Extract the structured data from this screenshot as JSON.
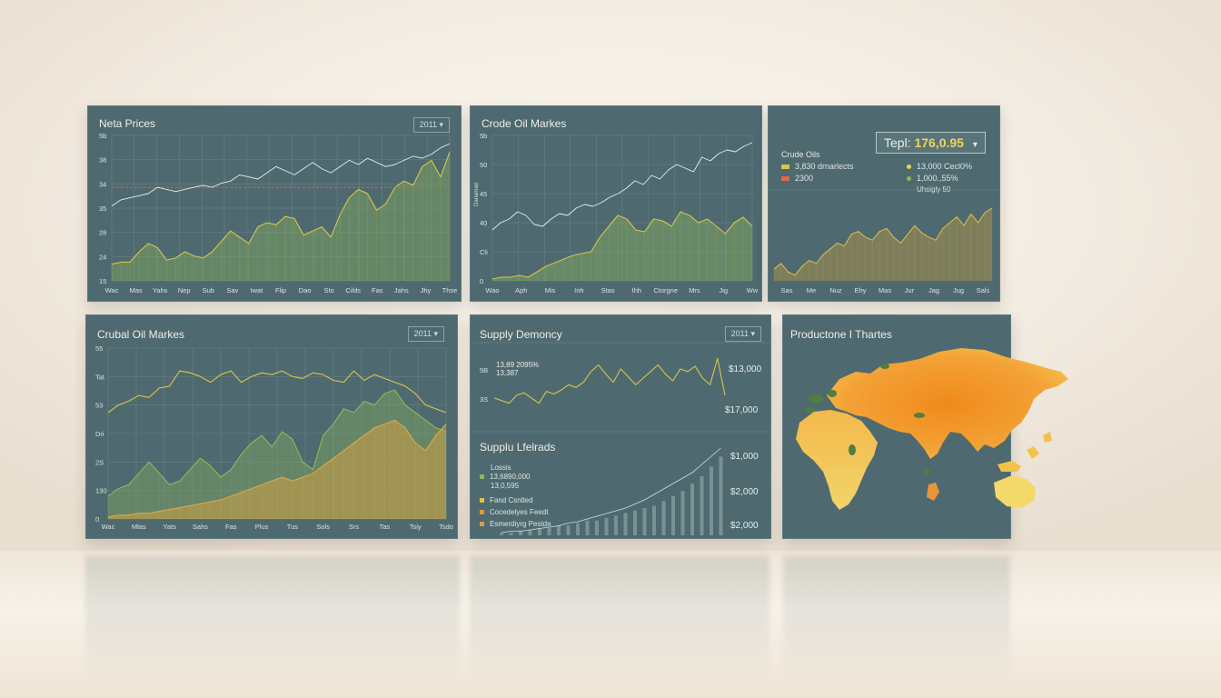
{
  "colors": {
    "panel": "#4e6a70",
    "grid": "#6c8489",
    "yellow": "#d9c44a",
    "green": "#8fb85a",
    "orange": "#e8953a",
    "line_white": "#e8ece9",
    "red_dashed": "#d0674c"
  },
  "panel1": {
    "title": "Neta Prices",
    "badge": "2011 ▾"
  },
  "panel2": {
    "title": "Crode Oil Markes"
  },
  "panel3": {
    "series1": "Crude Oils",
    "selector_label": "Tepl:",
    "selector_value": "176,0.95",
    "legend_left": [
      "3,830 drnarlects",
      "2300"
    ],
    "legend_right": [
      "13,000 Cecl0%",
      "1,000.,55%"
    ],
    "legend_note": "Uhsigly 50"
  },
  "panel4": {
    "title": "Crubal Oil Markes",
    "badge": "2011 ▾"
  },
  "panel5": {
    "title": "Supply Demoncy",
    "badge": "2011 ▾",
    "inline_labels": [
      "13,89 2095%",
      "13,387"
    ],
    "sub_title": "Supplu Lfelrads",
    "legend": [
      "Lossis",
      "13,6890,000",
      "13,0,595",
      "Fand Csnlted",
      "Cocedelyes Feedt",
      "Esmerdiyrg Pestde"
    ]
  },
  "panel6": {
    "title": "Productone I Thartes"
  },
  "chart_data": [
    {
      "type": "line",
      "title": "Neta Prices",
      "x_labels": [
        "Wac",
        "Mas",
        "Yahs",
        "Nep",
        "Sub",
        "Sav",
        "Iwat",
        "Flip",
        "Dao",
        "Sto",
        "Cilds",
        "Fas",
        "Jahs",
        "Jhy",
        "Thse"
      ],
      "y_labels": [
        "5b",
        "38",
        "34",
        "35",
        "28",
        "24",
        "15"
      ],
      "series": [
        {
          "values": [
            36,
            39,
            40,
            41,
            42,
            45,
            44,
            43,
            44,
            45,
            46,
            45,
            47,
            48,
            51,
            50,
            49,
            52,
            55,
            53,
            51,
            54,
            57,
            54,
            52,
            55,
            58,
            56,
            59,
            57,
            55,
            56,
            58,
            60,
            59,
            61,
            64,
            66
          ]
        },
        {
          "values": [
            8,
            9,
            9,
            14,
            18,
            16,
            10,
            11,
            14,
            12,
            11,
            14,
            19,
            24,
            21,
            18,
            26,
            28,
            27,
            31,
            30,
            22,
            24,
            26,
            21,
            32,
            40,
            44,
            42,
            34,
            37,
            45,
            48,
            46,
            55,
            58,
            50,
            62
          ]
        }
      ],
      "reference_line": 45
    },
    {
      "type": "line",
      "title": "Crode Oil Markes",
      "x_labels": [
        "Wao",
        "Aph",
        "Mis",
        "Inh",
        "Stas",
        "Ihh",
        "Ctorgne",
        "Mrs",
        "Jig",
        "Ww"
      ],
      "y_labels": [
        "5b",
        "50",
        "45",
        "40",
        "Cli",
        "0"
      ],
      "series": [
        {
          "values": [
            28,
            32,
            34,
            38,
            36,
            31,
            30,
            34,
            37,
            36,
            40,
            42,
            41,
            43,
            46,
            48,
            51,
            55,
            53,
            58,
            56,
            61,
            64,
            62,
            60,
            68,
            66,
            70,
            72,
            71,
            74,
            76
          ]
        },
        {
          "values": [
            1,
            2,
            2,
            3,
            2,
            5,
            8,
            10,
            12,
            14,
            15,
            16,
            24,
            30,
            36,
            34,
            28,
            27,
            34,
            33,
            30,
            38,
            36,
            32,
            34,
            30,
            26,
            32,
            35,
            30
          ]
        }
      ],
      "y_axis_label": "Dariamad"
    },
    {
      "type": "area",
      "title": "Crude Oils",
      "x_labels": [
        "Sas",
        "Me",
        "Nuz",
        "Ehy",
        "Mas",
        "Jur",
        "Jag",
        "Jug",
        "Sals"
      ],
      "series": [
        {
          "name": "Crude Oils",
          "values": [
            8,
            12,
            6,
            4,
            10,
            14,
            12,
            18,
            22,
            26,
            24,
            32,
            34,
            30,
            28,
            34,
            36,
            30,
            26,
            32,
            38,
            33,
            30,
            28,
            36,
            40,
            44,
            38,
            46,
            40,
            47,
            50
          ]
        }
      ]
    },
    {
      "type": "area",
      "title": "Crubal Oil Markes",
      "x_labels": [
        "Wac",
        "Mlas",
        "Yats",
        "Sahs",
        "Fas",
        "Plus",
        "Tus",
        "Sols",
        "Srs",
        "Tas",
        "Tsiy",
        "Tsdo"
      ],
      "y_labels": [
        "55",
        "Tat",
        "53",
        "Dri",
        "2S",
        "130",
        "0"
      ],
      "series": [
        {
          "values": [
            56,
            60,
            62,
            65,
            64,
            69,
            70,
            78,
            77,
            75,
            72,
            76,
            78,
            72,
            75,
            77,
            76,
            78,
            75,
            74,
            77,
            76,
            73,
            72,
            78,
            73,
            76,
            74,
            72,
            70,
            66,
            60,
            58,
            56
          ]
        },
        {
          "values": [
            12,
            16,
            18,
            24,
            30,
            24,
            18,
            20,
            26,
            32,
            28,
            22,
            26,
            34,
            40,
            44,
            38,
            46,
            42,
            30,
            26,
            44,
            50,
            58,
            56,
            62,
            60,
            66,
            68,
            60,
            56,
            52,
            48,
            46
          ]
        },
        {
          "values": [
            1,
            2,
            2,
            3,
            3,
            4,
            5,
            6,
            7,
            8,
            9,
            10,
            12,
            14,
            16,
            18,
            20,
            22,
            20,
            22,
            24,
            28,
            32,
            36,
            40,
            44,
            48,
            50,
            52,
            48,
            40,
            36,
            44,
            50
          ]
        }
      ]
    },
    {
      "type": "line",
      "title": "Supply Demoncy",
      "y_labels": [
        "5B",
        "3S"
      ],
      "right_labels": [
        "$13,000",
        "$17,000"
      ],
      "series": [
        {
          "values": [
            30,
            28,
            26,
            32,
            34,
            30,
            26,
            35,
            33,
            36,
            40,
            38,
            42,
            50,
            55,
            48,
            42,
            52,
            46,
            40,
            45,
            50,
            55,
            48,
            43,
            52,
            50,
            54,
            45,
            40,
            60,
            32
          ]
        }
      ]
    },
    {
      "type": "bar",
      "title": "Supplu Lfelrads",
      "right_labels": [
        "$1,000",
        "$2,000",
        "$2,000"
      ],
      "values": [
        1,
        1,
        2,
        2,
        3,
        3,
        4,
        4,
        5,
        6,
        6,
        7,
        8,
        9,
        10,
        11,
        12,
        14,
        16,
        18,
        21,
        24,
        28,
        32
      ],
      "line": [
        2,
        3,
        3,
        4,
        5,
        6,
        7,
        9,
        10,
        12,
        14,
        16,
        18,
        20,
        23,
        26,
        30,
        34,
        38,
        42,
        46,
        52,
        58,
        64
      ]
    },
    {
      "type": "map",
      "title": "Productone I Thartes"
    }
  ]
}
